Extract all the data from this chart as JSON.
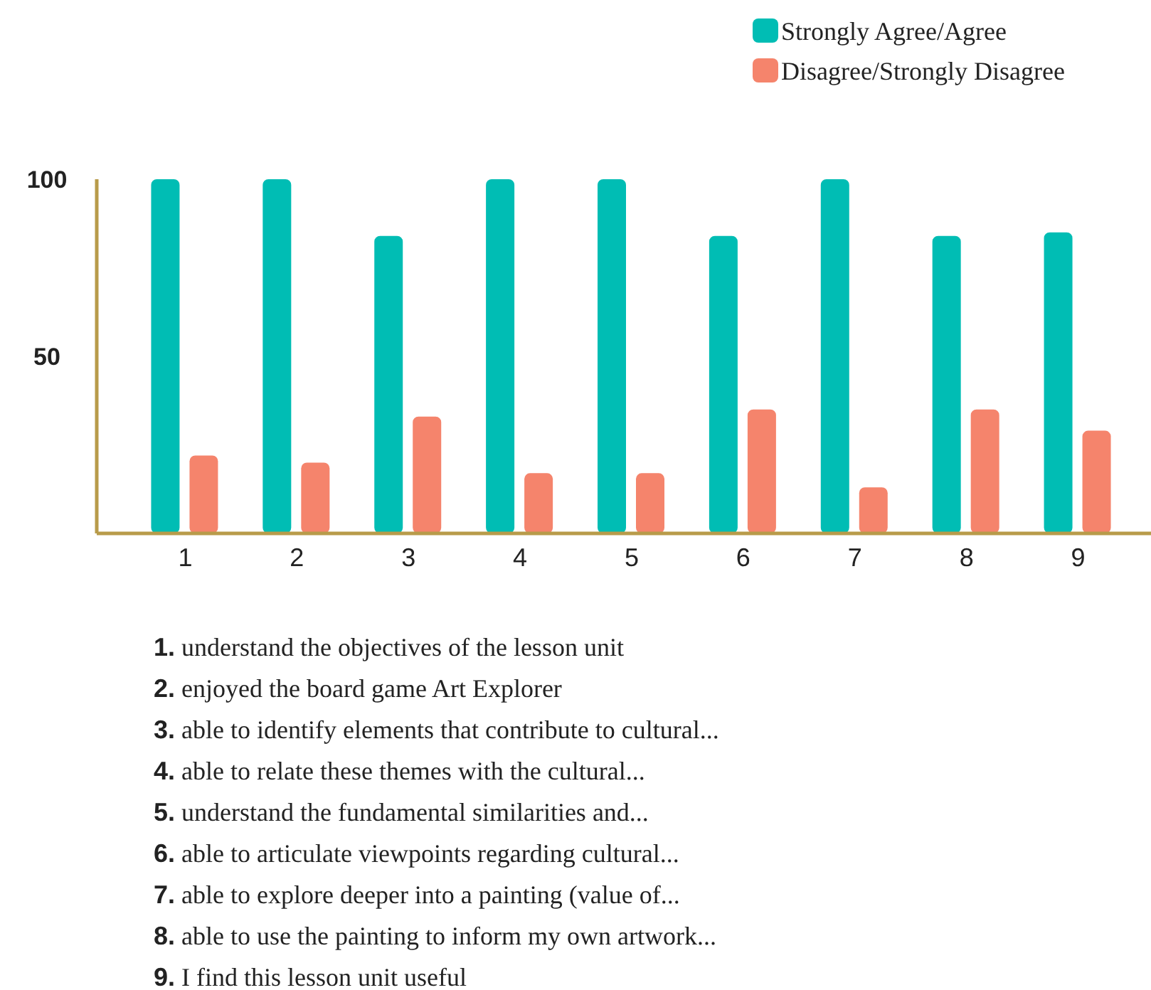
{
  "chart_data": {
    "type": "bar",
    "categories": [
      "1",
      "2",
      "3",
      "4",
      "5",
      "6",
      "7",
      "8",
      "9"
    ],
    "series": [
      {
        "name": "Strongly Agree/Agree",
        "color": "#00bdb4",
        "values": [
          100,
          100,
          84,
          100,
          100,
          84,
          100,
          84,
          85
        ]
      },
      {
        "name": "Disagree/Strongly Disagree",
        "color": "#f5846c",
        "values": [
          22,
          20,
          33,
          17,
          17,
          35,
          13,
          35,
          29
        ]
      }
    ],
    "ylim": [
      0,
      100
    ],
    "yticks": [
      50,
      100
    ],
    "grid": false,
    "legend": "top right",
    "annotations": [
      "1. understand the objectives of the lesson unit",
      "2. enjoyed the board game Art Explorer",
      "3. able to identify elements that contribute to cultural...",
      "4. able to relate these themes with the cultural...",
      "5. understand the fundamental similarities and...",
      "6. able to articulate viewpoints regarding cultural...",
      "7. able to explore deeper into a painting (value of...",
      "8. able to use the painting to inform my own artwork...",
      "9. I find this lesson unit useful"
    ]
  }
}
